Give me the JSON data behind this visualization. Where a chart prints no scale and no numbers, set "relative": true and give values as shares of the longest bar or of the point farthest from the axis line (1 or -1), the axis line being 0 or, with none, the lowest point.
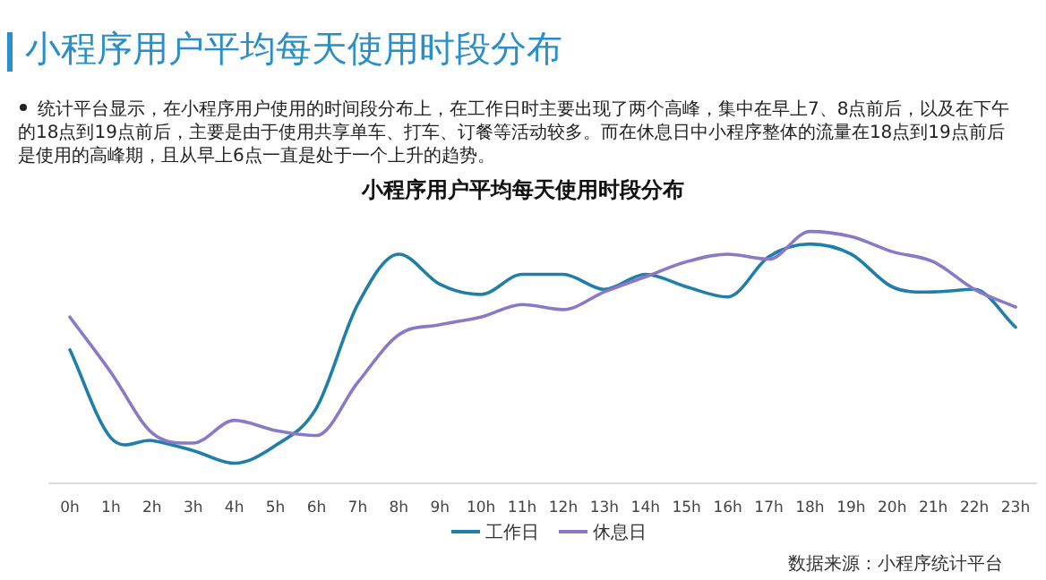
{
  "chart_data": {
    "type": "line",
    "title": "小程序用户平均每天使用时段分布",
    "annotations": [
      "小程序用户平均每天使用时段分布",
      "统计平台显示，在小程序用户使用的时间段分布上，在工作日时主要出现了两个高峰，集中在早上7、8点前后，以及在下午的18点到19点前后，主要是由于使用共享单车、打车、订餐等活动较多。而在休息日中小程序整体的流量在18点到19点前后是使用的高峰期，且从早上6点一直是处于一个上升的趋势。",
      "数据来源：小程序统计平台"
    ],
    "categories": [
      "0h",
      "1h",
      "2h",
      "3h",
      "4h",
      "5h",
      "6h",
      "7h",
      "8h",
      "9h",
      "10h",
      "11h",
      "12h",
      "13h",
      "14h",
      "15h",
      "16h",
      "17h",
      "18h",
      "19h",
      "20h",
      "21h",
      "22h",
      "23h"
    ],
    "relative": true,
    "series": [
      {
        "name": "工作日",
        "color": "#1f7fa8",
        "values": [
          0.53,
          0.18,
          0.17,
          0.13,
          0.08,
          0.15,
          0.3,
          0.71,
          0.91,
          0.79,
          0.75,
          0.83,
          0.83,
          0.77,
          0.83,
          0.78,
          0.74,
          0.9,
          0.95,
          0.91,
          0.78,
          0.76,
          0.77,
          0.62
        ]
      },
      {
        "name": "休息日",
        "color": "#8a78c8",
        "values": [
          0.66,
          0.44,
          0.2,
          0.16,
          0.25,
          0.21,
          0.19,
          0.4,
          0.59,
          0.63,
          0.66,
          0.71,
          0.69,
          0.76,
          0.82,
          0.88,
          0.91,
          0.89,
          1.0,
          0.98,
          0.92,
          0.88,
          0.77,
          0.7
        ]
      }
    ],
    "legend": "bottom",
    "grid": false
  }
}
